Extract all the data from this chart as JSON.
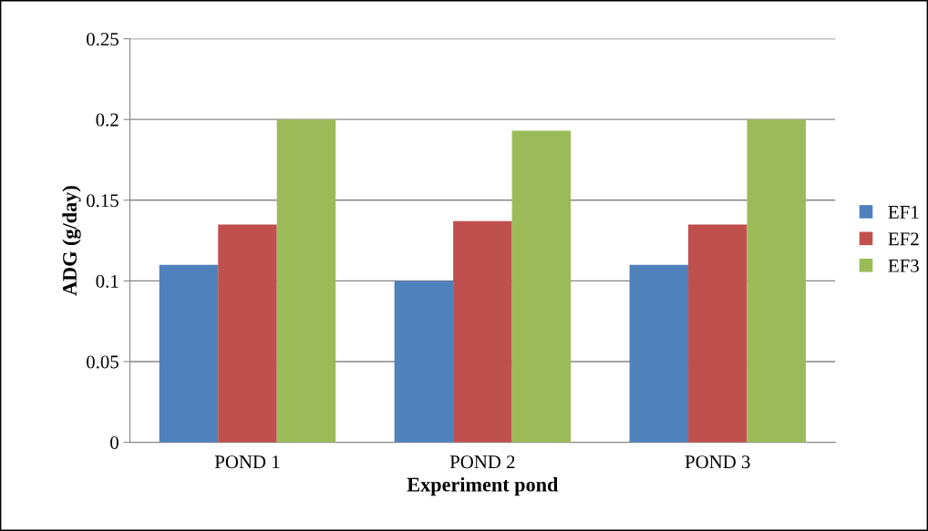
{
  "chart_data": {
    "type": "bar",
    "xlabel": "Experiment pond",
    "ylabel": "ADG (g/day)",
    "categories": [
      "POND 1",
      "POND 2",
      "POND 3"
    ],
    "series": [
      {
        "name": "EF1",
        "color": "#4f81bd",
        "values": [
          0.11,
          0.1,
          0.11
        ]
      },
      {
        "name": "EF2",
        "color": "#c0504d",
        "values": [
          0.135,
          0.137,
          0.135
        ]
      },
      {
        "name": "EF3",
        "color": "#9bbb59",
        "values": [
          0.2,
          0.193,
          0.2
        ]
      }
    ],
    "ylim": [
      0,
      0.25
    ],
    "yticks": [
      0,
      0.05,
      0.1,
      0.15,
      0.2,
      0.25
    ],
    "grid": "y",
    "legend": "right"
  }
}
